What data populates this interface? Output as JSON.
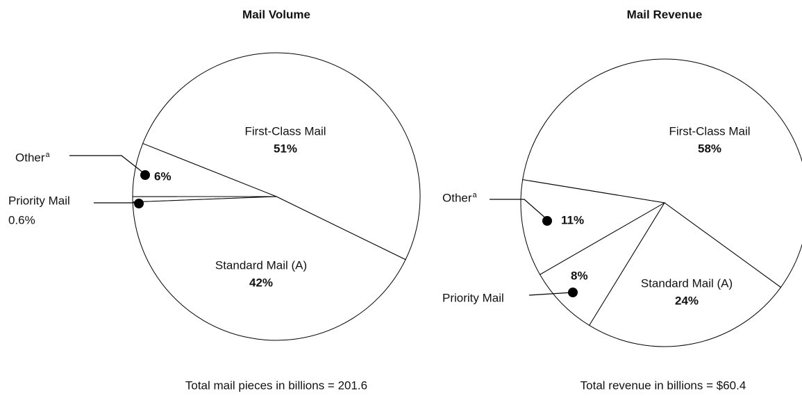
{
  "chart_data": [
    {
      "type": "pie",
      "title": "Mail Volume",
      "categories": [
        "First-Class Mail",
        "Other",
        "Priority Mail",
        "Standard Mail (A)"
      ],
      "category_notes": [
        null,
        "a",
        null,
        null
      ],
      "values": [
        51,
        6,
        0.6,
        42
      ],
      "value_labels": [
        "51%",
        "6%",
        "0.6%",
        "42%"
      ],
      "total_label": "Total mail pieces in billions  = 201.6"
    },
    {
      "type": "pie",
      "title": "Mail Revenue",
      "categories": [
        "First-Class Mail",
        "Other",
        "Priority Mail",
        "Standard Mail (A)"
      ],
      "category_notes": [
        null,
        "a",
        null,
        null
      ],
      "values": [
        58,
        11,
        8,
        24
      ],
      "value_labels": [
        "58%",
        "11%",
        "8%",
        "24%"
      ],
      "total_label": "Total revenue in billions = $60.4"
    }
  ]
}
